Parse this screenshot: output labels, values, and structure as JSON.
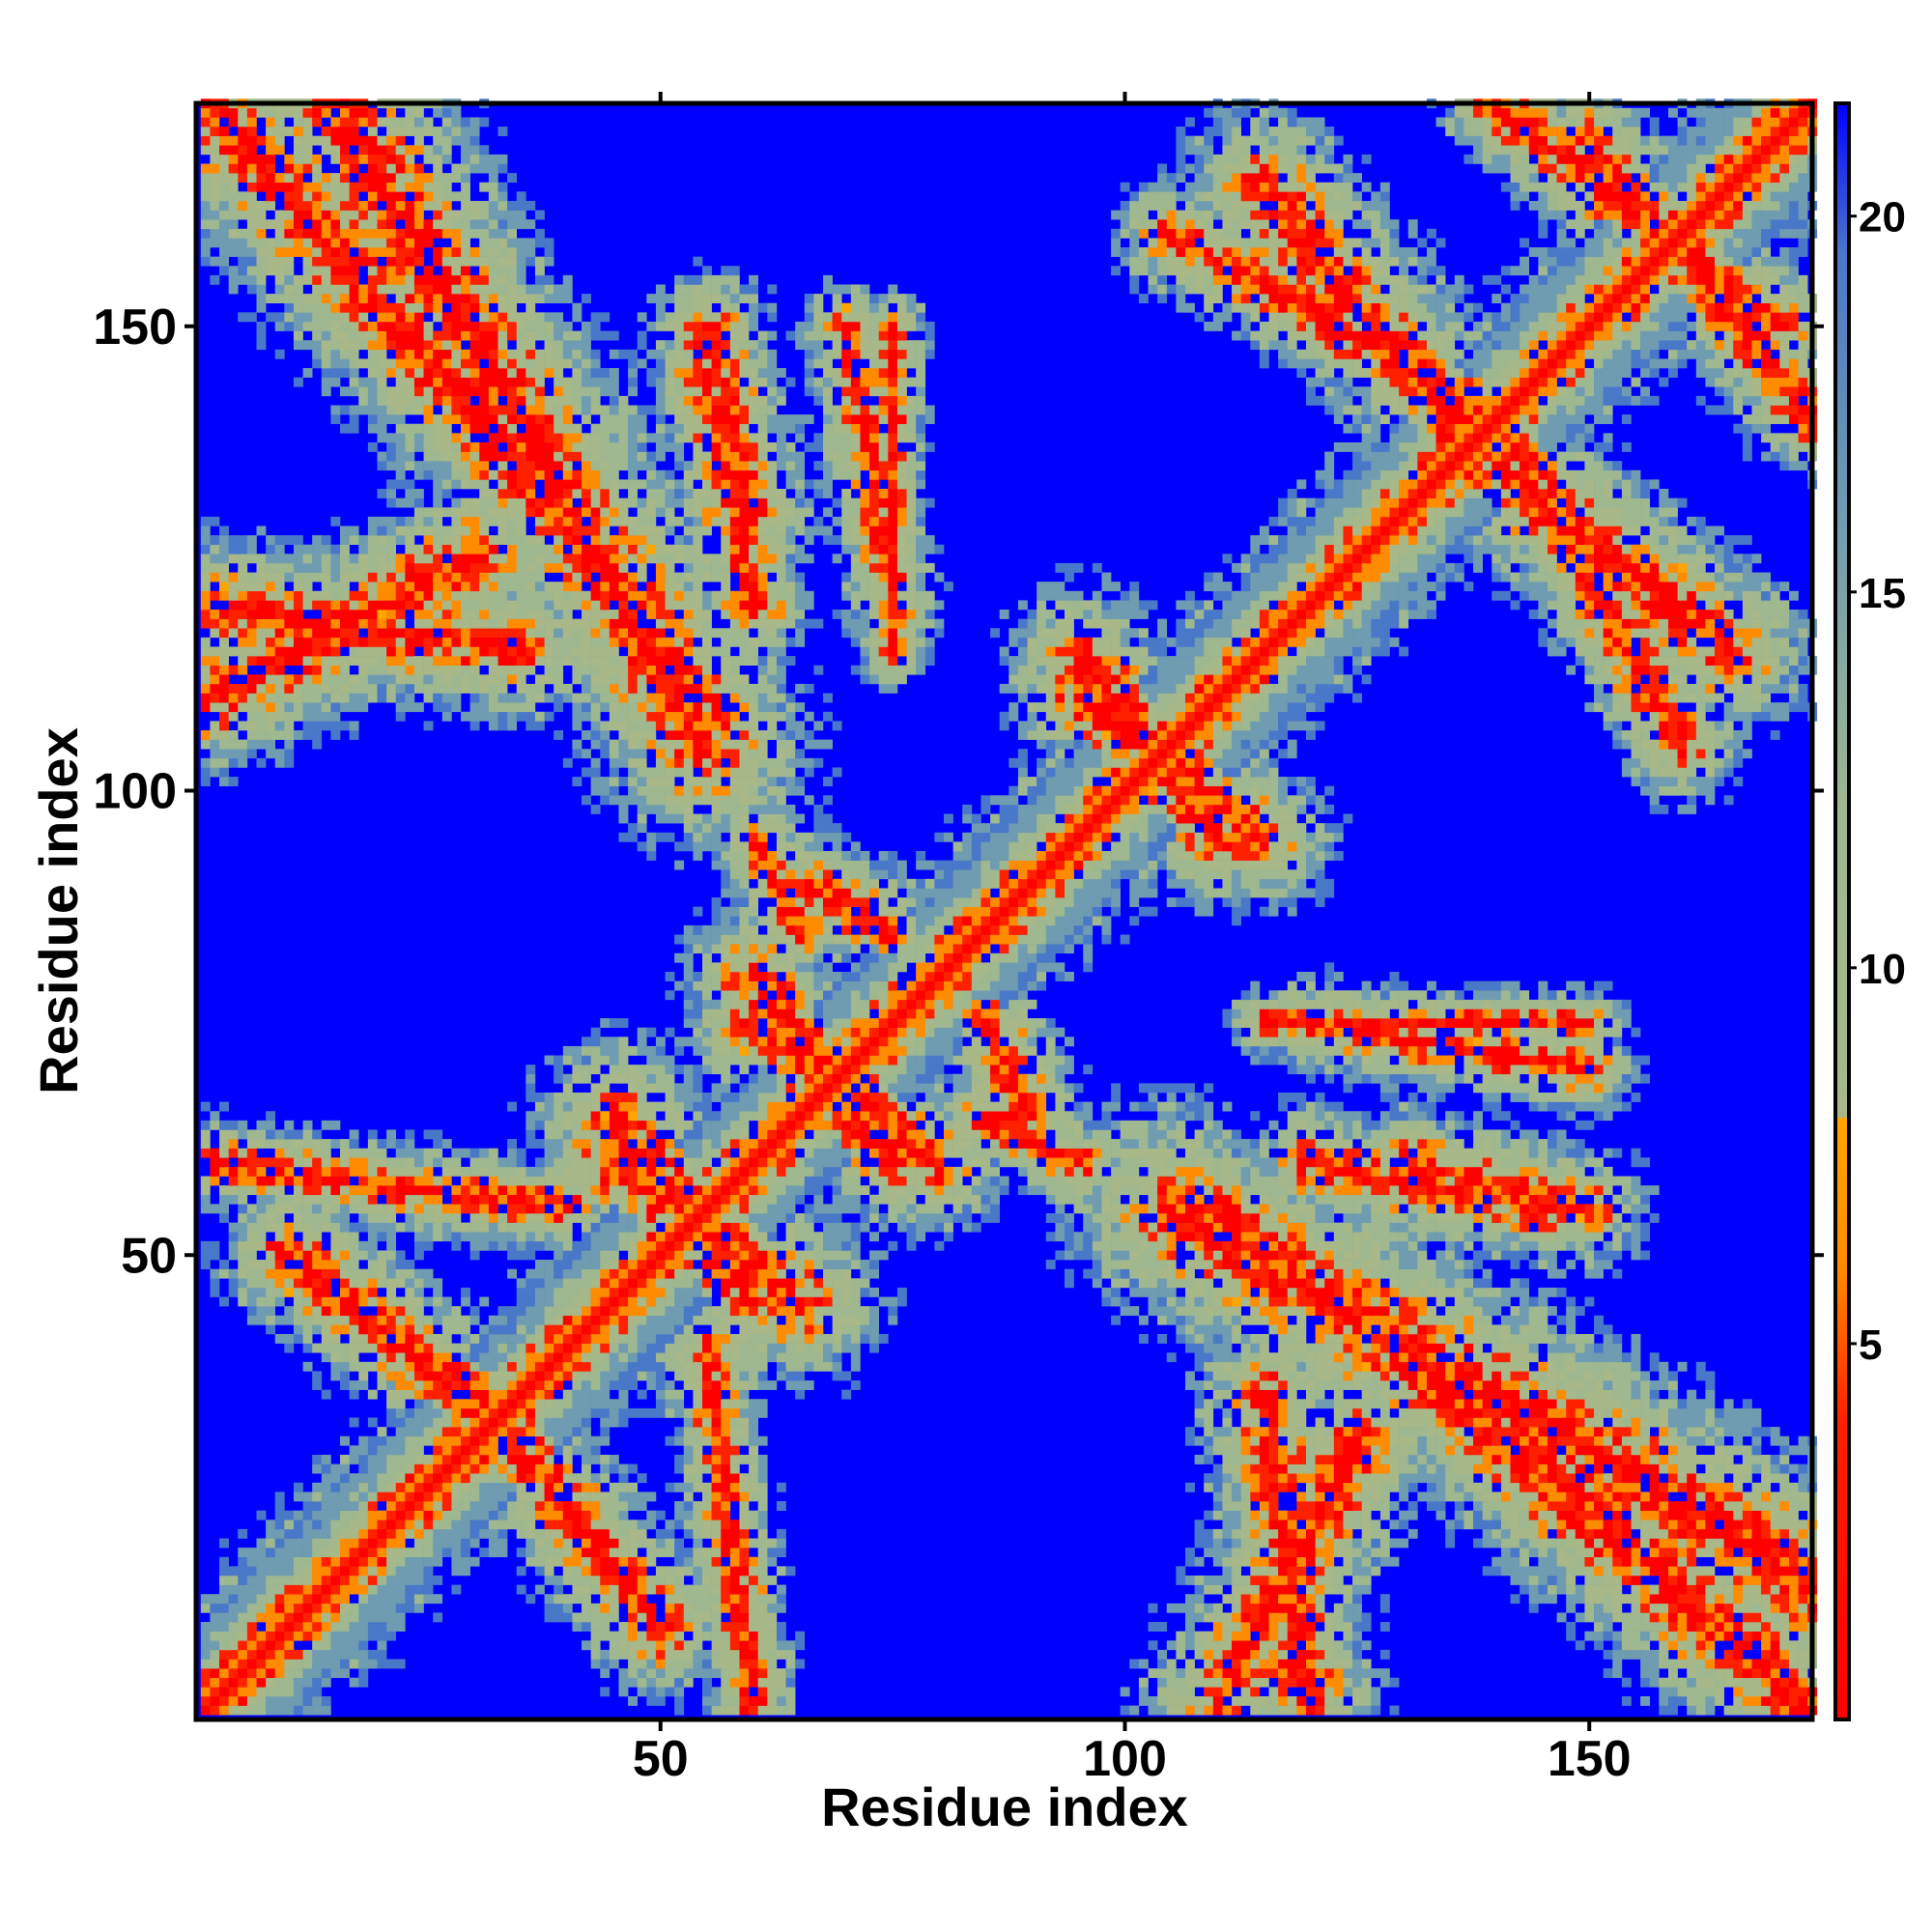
{
  "chart_data": {
    "type": "heatmap",
    "title": "",
    "xlabel": "Residue index",
    "ylabel": "Residue index",
    "n_residues": 174,
    "xlim": [
      1,
      174
    ],
    "ylim": [
      1,
      174
    ],
    "x_ticks": [
      50,
      100,
      150
    ],
    "x_tick_labels": [
      "50",
      "100",
      "150"
    ],
    "y_ticks": [
      50,
      100,
      150
    ],
    "y_tick_labels": [
      "50",
      "100",
      "150"
    ],
    "colorbar": {
      "ticks": [
        5,
        10,
        15,
        20
      ],
      "tick_labels": [
        "5",
        "10",
        "15",
        "20"
      ],
      "range": [
        0,
        21.5
      ],
      "position": "right"
    },
    "color_stops": [
      {
        "value": 0,
        "color": "#ff0000"
      },
      {
        "value": 4,
        "color": "#ff2000"
      },
      {
        "value": 6,
        "color": "#ff8c00"
      },
      {
        "value": 8,
        "color": "#ffa500"
      },
      {
        "value": 8.01,
        "color": "#a8b888"
      },
      {
        "value": 12,
        "color": "#9fb890"
      },
      {
        "value": 16,
        "color": "#6f9cb0"
      },
      {
        "value": 19.5,
        "color": "#4a78c8"
      },
      {
        "value": 21.5,
        "color": "#0000ff"
      }
    ],
    "background_color": "#0000ff",
    "description_of_values": "Pairwise residue distance matrix (Å); values > 21 shown as blue.",
    "contact_segments": [
      {
        "from": [
          1,
          1
        ],
        "to": [
          174,
          174
        ],
        "width": 7
      },
      {
        "from": [
          1,
          174
        ],
        "to": [
          40,
          130
        ],
        "width": 8
      },
      {
        "from": [
          1,
          120
        ],
        "to": [
          35,
          115
        ],
        "width": 6
      },
      {
        "from": [
          30,
          140
        ],
        "to": [
          55,
          110
        ],
        "width": 6
      },
      {
        "from": [
          55,
          145
        ],
        "to": [
          60,
          120
        ],
        "width": 5
      },
      {
        "from": [
          70,
          150
        ],
        "to": [
          75,
          120
        ],
        "width": 4
      },
      {
        "from": [
          45,
          60
        ],
        "to": [
          65,
          45
        ],
        "width": 7
      },
      {
        "from": [
          60,
          75
        ],
        "to": [
          80,
          60
        ],
        "width": 6
      },
      {
        "from": [
          65,
          90
        ],
        "to": [
          75,
          85
        ],
        "width": 5
      },
      {
        "from": [
          95,
          115
        ],
        "to": [
          110,
          95
        ],
        "width": 6
      },
      {
        "from": [
          85,
          65
        ],
        "to": [
          95,
          60
        ],
        "width": 4
      },
      {
        "from": [
          105,
          55
        ],
        "to": [
          174,
          15
        ],
        "width": 9
      },
      {
        "from": [
          110,
          1
        ],
        "to": [
          125,
          30
        ],
        "width": 7
      },
      {
        "from": [
          115,
          75
        ],
        "to": [
          150,
          75
        ],
        "width": 3
      },
      {
        "from": [
          130,
          60
        ],
        "to": [
          150,
          55
        ],
        "width": 5
      },
      {
        "from": [
          40,
          55
        ],
        "to": [
          1,
          60
        ],
        "width": 4
      },
      {
        "from": [
          10,
          50
        ],
        "to": [
          35,
          30
        ],
        "width": 6
      },
      {
        "from": [
          115,
          165
        ],
        "to": [
          135,
          140
        ],
        "width": 7
      },
      {
        "from": [
          140,
          140
        ],
        "to": [
          160,
          105
        ],
        "width": 5
      },
      {
        "from": [
          150,
          170
        ],
        "to": [
          174,
          140
        ],
        "width": 5
      }
    ]
  }
}
